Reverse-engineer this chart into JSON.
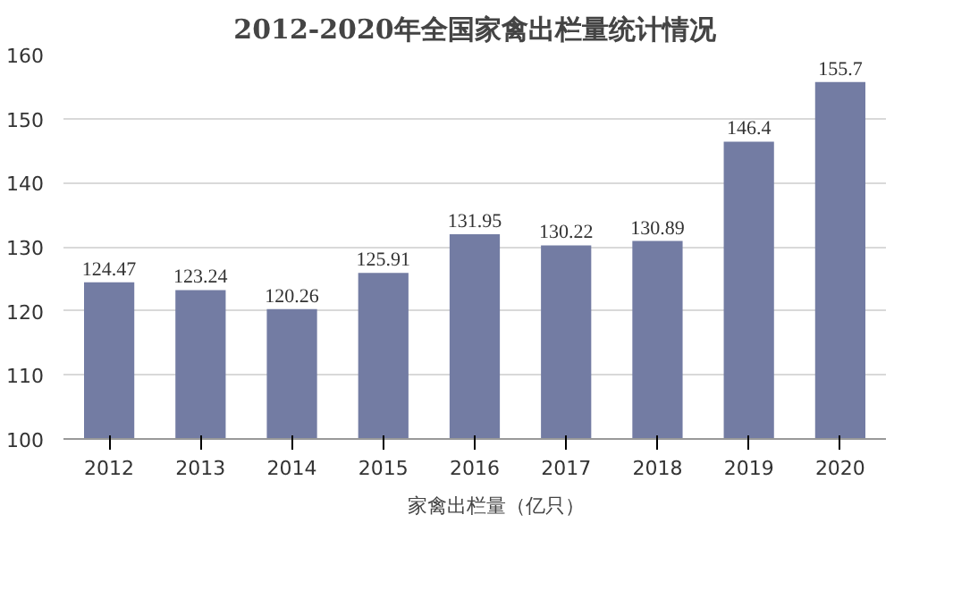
{
  "chart_data": {
    "type": "bar",
    "title": "2012-2020年全国家禽出栏量统计情况",
    "categories": [
      "2012",
      "2013",
      "2014",
      "2015",
      "2016",
      "2017",
      "2018",
      "2019",
      "2020"
    ],
    "series": [
      {
        "name": "家禽出栏量（亿只）",
        "color": "#737ca3",
        "values": [
          124.47,
          123.24,
          120.26,
          125.91,
          131.95,
          130.22,
          130.89,
          146.4,
          155.7
        ]
      }
    ],
    "ylim": [
      100,
      160
    ],
    "yticks": [
      100,
      110,
      120,
      130,
      140,
      150,
      160
    ],
    "grid": "y",
    "legend": "bottom",
    "data_labels": true
  }
}
